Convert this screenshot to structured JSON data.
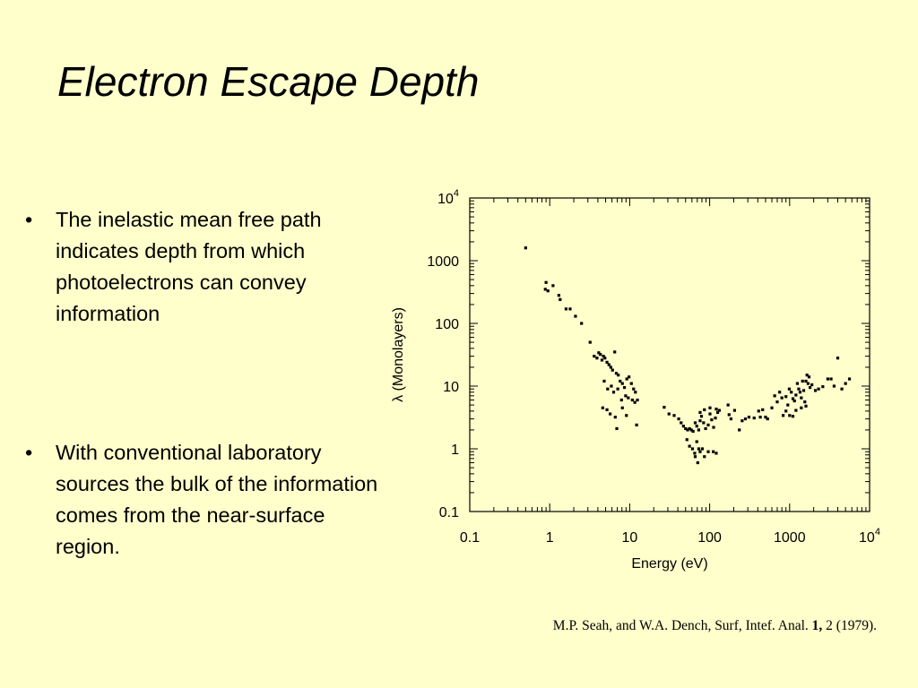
{
  "slide": {
    "title": "Electron Escape Depth",
    "bullets": [
      "The inelastic mean free path indicates depth from which photoelectrons can convey information",
      "With conventional laboratory sources the bulk of the information comes from the near-surface region."
    ],
    "bullet_symbol": "•",
    "citation_pre": "M.P. Seah, and W.A. Dench, Surf, Intef. Anal. ",
    "citation_bold": "1,",
    "citation_post": " 2 (1979)."
  },
  "colors": {
    "background": "#ffffcc",
    "ink": "#000000"
  },
  "chart_data": {
    "type": "scatter",
    "title": "",
    "xlabel": "Energy (eV)",
    "ylabel": "λ (Monolayers)",
    "xscale": "log",
    "yscale": "log",
    "xlim": [
      0.1,
      10000
    ],
    "ylim": [
      0.1,
      10000
    ],
    "grid": false,
    "x_tick_labels": [
      {
        "value": 0.1,
        "base": "0.1",
        "sup": ""
      },
      {
        "value": 1,
        "base": "1",
        "sup": ""
      },
      {
        "value": 10,
        "base": "10",
        "sup": ""
      },
      {
        "value": 100,
        "base": "100",
        "sup": ""
      },
      {
        "value": 1000,
        "base": "1000",
        "sup": ""
      },
      {
        "value": 10000,
        "base": "10",
        "sup": "4"
      }
    ],
    "y_tick_labels": [
      {
        "value": 0.1,
        "base": "0.1",
        "sup": ""
      },
      {
        "value": 1,
        "base": "1",
        "sup": ""
      },
      {
        "value": 10,
        "base": "10",
        "sup": ""
      },
      {
        "value": 100,
        "base": "100",
        "sup": ""
      },
      {
        "value": 1000,
        "base": "1000",
        "sup": ""
      },
      {
        "value": 10000,
        "base": "10",
        "sup": "4"
      }
    ],
    "points": [
      [
        0.5,
        1600
      ],
      [
        0.9,
        450
      ],
      [
        0.88,
        350
      ],
      [
        0.95,
        330
      ],
      [
        1.1,
        400
      ],
      [
        1.3,
        280
      ],
      [
        1.35,
        240
      ],
      [
        1.6,
        170
      ],
      [
        1.8,
        170
      ],
      [
        2.1,
        130
      ],
      [
        2.5,
        100
      ],
      [
        3.2,
        50
      ],
      [
        3.6,
        30
      ],
      [
        3.9,
        28
      ],
      [
        4.1,
        34
      ],
      [
        4.3,
        32
      ],
      [
        4.5,
        26
      ],
      [
        4.7,
        30
      ],
      [
        4.9,
        28
      ],
      [
        5.2,
        24
      ],
      [
        5.5,
        22
      ],
      [
        5.8,
        20
      ],
      [
        6.1,
        18
      ],
      [
        6.5,
        35
      ],
      [
        6.8,
        16
      ],
      [
        7.2,
        15
      ],
      [
        7.6,
        12
      ],
      [
        8.1,
        11
      ],
      [
        8.6,
        9.5
      ],
      [
        9.2,
        13
      ],
      [
        9.8,
        14
      ],
      [
        10.5,
        11
      ],
      [
        11.2,
        9
      ],
      [
        11.8,
        8
      ],
      [
        4.8,
        12
      ],
      [
        5.3,
        9
      ],
      [
        5.9,
        10
      ],
      [
        6.3,
        8
      ],
      [
        7.1,
        9
      ],
      [
        7.9,
        6
      ],
      [
        8.9,
        7
      ],
      [
        9.6,
        6.5
      ],
      [
        10.8,
        6
      ],
      [
        11.6,
        5.5
      ],
      [
        12.5,
        6
      ],
      [
        4.6,
        4.5
      ],
      [
        5.2,
        4.2
      ],
      [
        5.7,
        3.6
      ],
      [
        6.6,
        3.2
      ],
      [
        6.9,
        2.1
      ],
      [
        8.1,
        4.5
      ],
      [
        9.1,
        3.4
      ],
      [
        12.2,
        2.4
      ],
      [
        27,
        4.6
      ],
      [
        31,
        3.6
      ],
      [
        36,
        3.4
      ],
      [
        41,
        3.0
      ],
      [
        44,
        2.6
      ],
      [
        47,
        2.3
      ],
      [
        50,
        2.1
      ],
      [
        53,
        2.0
      ],
      [
        56,
        2.1
      ],
      [
        59,
        2.0
      ],
      [
        62,
        1.9
      ],
      [
        66,
        2.6
      ],
      [
        69,
        2.3
      ],
      [
        73,
        2.0
      ],
      [
        76,
        2.8
      ],
      [
        79,
        3.3
      ],
      [
        84,
        2.6
      ],
      [
        89,
        2.1
      ],
      [
        96,
        2.4
      ],
      [
        101,
        3.6
      ],
      [
        106,
        2.9
      ],
      [
        112,
        2.2
      ],
      [
        118,
        3.1
      ],
      [
        126,
        3.8
      ],
      [
        132,
        4.1
      ],
      [
        52,
        1.4
      ],
      [
        56,
        1.1
      ],
      [
        61,
        1.0
      ],
      [
        65,
        0.85
      ],
      [
        69,
        1.3
      ],
      [
        73,
        1.0
      ],
      [
        76,
        0.9
      ],
      [
        81,
        1.0
      ],
      [
        86,
        0.75
      ],
      [
        71,
        0.6
      ],
      [
        66,
        0.75
      ],
      [
        96,
        0.9
      ],
      [
        111,
        0.9
      ],
      [
        121,
        0.85
      ],
      [
        76,
        3.8
      ],
      [
        86,
        4.2
      ],
      [
        101,
        4.5
      ],
      [
        121,
        4.3
      ],
      [
        170,
        5.0
      ],
      [
        175,
        3.5
      ],
      [
        185,
        3.0
      ],
      [
        205,
        4.1
      ],
      [
        235,
        2.0
      ],
      [
        255,
        2.8
      ],
      [
        280,
        3.0
      ],
      [
        310,
        3.2
      ],
      [
        360,
        3.1
      ],
      [
        410,
        4.0
      ],
      [
        430,
        3.2
      ],
      [
        460,
        4.2
      ],
      [
        500,
        3.2
      ],
      [
        530,
        3.0
      ],
      [
        600,
        4.5
      ],
      [
        650,
        7.0
      ],
      [
        700,
        5.6
      ],
      [
        750,
        8.0
      ],
      [
        800,
        6.5
      ],
      [
        830,
        3.4
      ],
      [
        900,
        6.8
      ],
      [
        950,
        5.0
      ],
      [
        990,
        9.0
      ],
      [
        1050,
        8.0
      ],
      [
        1100,
        6.3
      ],
      [
        1150,
        5.8
      ],
      [
        1200,
        7.2
      ],
      [
        1250,
        11
      ],
      [
        1300,
        9
      ],
      [
        1350,
        8
      ],
      [
        1400,
        6.5
      ],
      [
        1450,
        12
      ],
      [
        1500,
        8.5
      ],
      [
        1550,
        5.6
      ],
      [
        1600,
        4.8
      ],
      [
        1650,
        15
      ],
      [
        1700,
        11
      ],
      [
        1800,
        9.5
      ],
      [
        1900,
        10.5
      ],
      [
        2100,
        8.5
      ],
      [
        2300,
        9
      ],
      [
        2600,
        9.8
      ],
      [
        3000,
        13
      ],
      [
        3300,
        13
      ],
      [
        3600,
        10
      ],
      [
        4000,
        28
      ],
      [
        4500,
        9
      ],
      [
        5000,
        11
      ],
      [
        5600,
        13
      ],
      [
        900,
        4.0
      ],
      [
        1000,
        3.4
      ],
      [
        1100,
        3.3
      ],
      [
        1200,
        4.1
      ],
      [
        1400,
        4.5
      ],
      [
        1600,
        12
      ],
      [
        1750,
        14
      ]
    ]
  }
}
